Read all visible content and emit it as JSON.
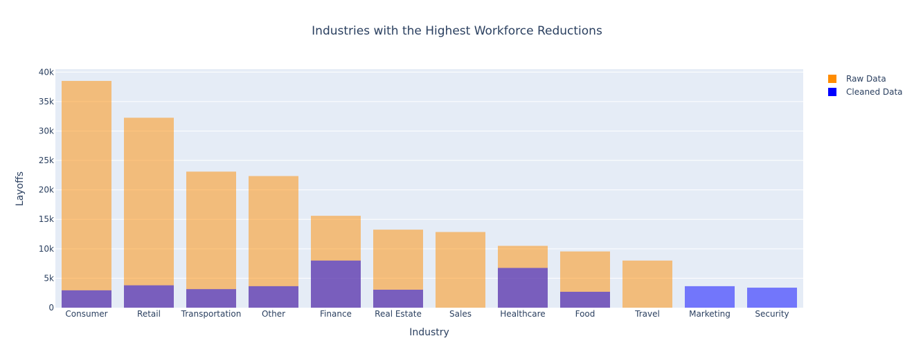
{
  "chart_data": {
    "type": "bar",
    "barmode": "overlay",
    "title": "Industries with the Highest Workforce Reductions",
    "xlabel": "Industry",
    "ylabel": "Layoffs",
    "categories": [
      "Consumer",
      "Retail",
      "Transportation",
      "Other",
      "Finance",
      "Real Estate",
      "Sales",
      "Healthcare",
      "Food",
      "Travel",
      "Marketing",
      "Security"
    ],
    "series": [
      {
        "name": "Raw Data",
        "color": "#ff8c00",
        "opacity": 0.5,
        "values": [
          38500,
          32250,
          23100,
          22350,
          15600,
          13250,
          12850,
          10500,
          9550,
          8000,
          null,
          null
        ]
      },
      {
        "name": "Cleaned Data",
        "color": "#0000ff",
        "opacity": 0.5,
        "values": [
          2950,
          3800,
          3150,
          3650,
          8000,
          3050,
          null,
          6750,
          2700,
          null,
          3650,
          3400
        ]
      }
    ],
    "ylim": [
      0,
      40500
    ],
    "yticks": [
      0,
      5000,
      10000,
      15000,
      20000,
      25000,
      30000,
      35000,
      40000
    ],
    "ytick_labels": [
      "0",
      "5k",
      "10k",
      "15k",
      "20k",
      "25k",
      "30k",
      "35k",
      "40k"
    ],
    "grid": true,
    "legend_position": "top-right",
    "plot_background": "#e5ecf6"
  }
}
